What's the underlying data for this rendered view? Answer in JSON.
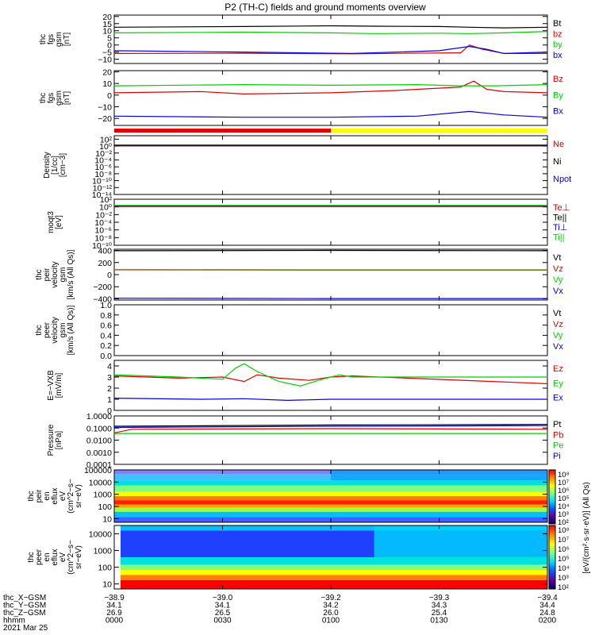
{
  "title": "P2 (TH-C) fields and ground moments overview",
  "colors": {
    "black": "#000000",
    "red": "#e00000",
    "green": "#00d000",
    "blue": "#0000e0",
    "yellow": "#ffff00",
    "axis": "#000000"
  },
  "chart_data": [
    {
      "type": "line",
      "ylabel": [
        "thc",
        "fgs",
        "gsm",
        "[nT]"
      ],
      "ylim": [
        -13,
        21
      ],
      "ticks": [
        {
          "v": 20,
          "label": "20"
        },
        {
          "v": 15,
          "label": "15"
        },
        {
          "v": 10,
          "label": "10"
        },
        {
          "v": 5,
          "label": "5"
        },
        {
          "v": 0,
          "label": "0"
        },
        {
          "v": -5,
          "label": "−5"
        },
        {
          "v": -10,
          "label": "−10"
        }
      ],
      "series": [
        {
          "name": "Bt",
          "color": "black",
          "values": [
            [
              0,
              12.5
            ],
            [
              0.3,
              13
            ],
            [
              0.5,
              13.5
            ],
            [
              0.6,
              13.2
            ],
            [
              0.75,
              13
            ],
            [
              0.82,
              12.5
            ],
            [
              0.9,
              12
            ],
            [
              1,
              12.5
            ]
          ]
        },
        {
          "name": "bz",
          "color": "red",
          "values": [
            [
              0,
              -6
            ],
            [
              0.3,
              -5.8
            ],
            [
              0.55,
              -6.2
            ],
            [
              0.8,
              -5.5
            ],
            [
              0.82,
              0
            ],
            [
              0.85,
              -3
            ],
            [
              0.9,
              -6
            ],
            [
              1,
              -6
            ]
          ]
        },
        {
          "name": "by",
          "color": "green",
          "values": [
            [
              0,
              8.5
            ],
            [
              0.3,
              9
            ],
            [
              0.5,
              8.5
            ],
            [
              0.6,
              8
            ],
            [
              0.75,
              8.3
            ],
            [
              0.82,
              8
            ],
            [
              0.9,
              8.5
            ],
            [
              1,
              9.5
            ]
          ]
        },
        {
          "name": "bx",
          "color": "blue",
          "values": [
            [
              0,
              -4
            ],
            [
              0.3,
              -5
            ],
            [
              0.55,
              -6
            ],
            [
              0.75,
              -4
            ],
            [
              0.82,
              -1
            ],
            [
              0.86,
              -3
            ],
            [
              0.9,
              -6
            ],
            [
              1,
              -5
            ]
          ]
        }
      ]
    },
    {
      "type": "line",
      "ylabel": [
        "thc",
        "fgs",
        "gsm",
        "[nT]"
      ],
      "ylim": [
        -26,
        21
      ],
      "ticks": [
        {
          "v": 20,
          "label": "20"
        },
        {
          "v": 10,
          "label": "10"
        },
        {
          "v": 0,
          "label": "0"
        },
        {
          "v": -10,
          "label": "−10"
        },
        {
          "v": -20,
          "label": "−20"
        }
      ],
      "series": [
        {
          "name": "Bz",
          "color": "red",
          "values": [
            [
              0,
              2
            ],
            [
              0.2,
              3
            ],
            [
              0.3,
              1
            ],
            [
              0.5,
              2
            ],
            [
              0.65,
              4
            ],
            [
              0.8,
              7
            ],
            [
              0.83,
              12
            ],
            [
              0.86,
              5
            ],
            [
              0.9,
              3
            ],
            [
              1,
              2
            ]
          ]
        },
        {
          "name": "By",
          "color": "green",
          "values": [
            [
              0,
              8
            ],
            [
              0.3,
              9
            ],
            [
              0.5,
              8.5
            ],
            [
              0.7,
              9
            ],
            [
              0.8,
              8
            ],
            [
              0.88,
              8
            ],
            [
              1,
              9
            ]
          ]
        },
        {
          "name": "Bx",
          "color": "blue",
          "values": [
            [
              0,
              -18
            ],
            [
              0.3,
              -19
            ],
            [
              0.5,
              -19
            ],
            [
              0.7,
              -18
            ],
            [
              0.82,
              -14
            ],
            [
              0.9,
              -17
            ],
            [
              1,
              -19
            ]
          ]
        }
      ]
    },
    {
      "type": "line",
      "scale": "log",
      "ylabel": [
        "Density",
        "[1/cc]",
        "[cm−3]"
      ],
      "ylim": [
        -14,
        3
      ],
      "ticks": [
        {
          "v": 2,
          "label": "10²"
        },
        {
          "v": 0,
          "label": "10⁰"
        },
        {
          "v": -2,
          "label": "10⁻²"
        },
        {
          "v": -4,
          "label": "10⁻⁴"
        },
        {
          "v": -6,
          "label": "10⁻⁶"
        },
        {
          "v": -8,
          "label": "10⁻⁸"
        },
        {
          "v": -10,
          "label": "10⁻¹⁰"
        },
        {
          "v": -12,
          "label": "10⁻¹²"
        },
        {
          "v": -14,
          "label": "10⁻¹⁴"
        }
      ],
      "series": [
        {
          "name": "Ne",
          "color": "red",
          "values": [
            [
              0,
              0.05
            ],
            [
              1,
              0.05
            ]
          ]
        },
        {
          "name": "Ni",
          "color": "black",
          "values": [
            [
              0,
              0.3
            ],
            [
              1,
              0.3
            ]
          ]
        },
        {
          "name": "Npot",
          "color": "blue",
          "values": [
            [
              0,
              0.1
            ],
            [
              1,
              0.1
            ]
          ]
        }
      ]
    },
    {
      "type": "line",
      "scale": "log",
      "ylabel": [
        "moqt3",
        "[eV]"
      ],
      "ylim": [
        -10,
        2
      ],
      "ticks": [
        {
          "v": 2,
          "label": "10²"
        },
        {
          "v": 0,
          "label": "10⁰"
        },
        {
          "v": -2,
          "label": "10⁻²"
        },
        {
          "v": -4,
          "label": "10⁻⁴"
        },
        {
          "v": -6,
          "label": "10⁻⁶"
        },
        {
          "v": -8,
          "label": "10⁻⁸"
        },
        {
          "v": -10,
          "label": "10⁻¹⁰"
        }
      ],
      "series": [
        {
          "name": "Te⊥",
          "color": "red",
          "values": [
            [
              0,
              0.1
            ],
            [
              1,
              0.1
            ]
          ]
        },
        {
          "name": "Te||",
          "color": "black",
          "values": [
            [
              0,
              0.3
            ],
            [
              1,
              0.3
            ]
          ]
        },
        {
          "name": "Ti⊥",
          "color": "blue",
          "values": [
            [
              0,
              0.2
            ],
            [
              1,
              0.2
            ]
          ]
        },
        {
          "name": "Ti||",
          "color": "green",
          "values": [
            [
              0,
              0.4
            ],
            [
              1,
              0.4
            ]
          ]
        }
      ]
    },
    {
      "type": "line",
      "ylabel": [
        "thc",
        "peir",
        "velocity",
        "gsm",
        "[km/s (All Qs)]"
      ],
      "ylim": [
        -420,
        420
      ],
      "ticks": [
        {
          "v": 400,
          "label": "400"
        },
        {
          "v": 200,
          "label": "200"
        },
        {
          "v": 0,
          "label": "0"
        },
        {
          "v": -200,
          "label": "−200"
        },
        {
          "v": -400,
          "label": "−400"
        }
      ],
      "series": [
        {
          "name": "Vt",
          "color": "black",
          "values": [
            [
              0,
              395
            ],
            [
              0.5,
              400
            ],
            [
              1,
              395
            ]
          ]
        },
        {
          "name": "Vz",
          "color": "red",
          "values": [
            [
              0,
              80
            ],
            [
              0.5,
              75
            ],
            [
              1,
              75
            ]
          ]
        },
        {
          "name": "Vy",
          "color": "green",
          "values": [
            [
              0,
              85
            ],
            [
              0.5,
              80
            ],
            [
              1,
              80
            ]
          ]
        },
        {
          "name": "Vx",
          "color": "blue",
          "values": [
            [
              0,
              -390
            ],
            [
              0.5,
              -395
            ],
            [
              1,
              -395
            ]
          ]
        }
      ]
    },
    {
      "type": "line",
      "ylabel": [
        "thc",
        "peer",
        "velocity",
        "gsm",
        "[km/s (All Qs)]"
      ],
      "ylim": [
        0,
        1
      ],
      "ticks": [
        {
          "v": 1,
          "label": "1.0"
        },
        {
          "v": 0.8,
          "label": "0.8"
        },
        {
          "v": 0.6,
          "label": "0.6"
        },
        {
          "v": 0.4,
          "label": "0.4"
        },
        {
          "v": 0.2,
          "label": "0.2"
        },
        {
          "v": 0,
          "label": "0.0"
        }
      ],
      "series": [
        {
          "name": "Vt",
          "color": "black",
          "values": []
        },
        {
          "name": "Vz",
          "color": "red",
          "values": []
        },
        {
          "name": "Vy",
          "color": "green",
          "values": []
        },
        {
          "name": "Vx",
          "color": "blue",
          "values": []
        }
      ]
    },
    {
      "type": "line",
      "ylabel": [
        "E=−VXB",
        "[mV/m]"
      ],
      "ylim": [
        0,
        4.5
      ],
      "ticks": [
        {
          "v": 4,
          "label": "4"
        },
        {
          "v": 3,
          "label": "3"
        },
        {
          "v": 2,
          "label": "2"
        },
        {
          "v": 1,
          "label": "1"
        },
        {
          "v": 0,
          "label": "0"
        }
      ],
      "series": [
        {
          "name": "Ez",
          "color": "red",
          "values": [
            [
              0,
              3.1
            ],
            [
              0.15,
              2.9
            ],
            [
              0.25,
              3.0
            ],
            [
              0.3,
              2.6
            ],
            [
              0.33,
              3.2
            ],
            [
              0.38,
              2.9
            ],
            [
              0.45,
              2.7
            ],
            [
              0.5,
              3.0
            ],
            [
              0.55,
              3.1
            ],
            [
              1,
              2.4
            ]
          ]
        },
        {
          "name": "Ey",
          "color": "green",
          "values": [
            [
              0,
              3.2
            ],
            [
              0.15,
              3.0
            ],
            [
              0.25,
              2.8
            ],
            [
              0.28,
              3.8
            ],
            [
              0.3,
              4.2
            ],
            [
              0.33,
              3.5
            ],
            [
              0.38,
              2.6
            ],
            [
              0.43,
              2.2
            ],
            [
              0.48,
              2.8
            ],
            [
              0.52,
              3.2
            ],
            [
              0.55,
              3.0
            ],
            [
              1,
              3.0
            ]
          ]
        },
        {
          "name": "Ex",
          "color": "blue",
          "values": [
            [
              0,
              1.1
            ],
            [
              0.2,
              1.0
            ],
            [
              0.3,
              1.05
            ],
            [
              0.4,
              0.9
            ],
            [
              0.5,
              1.0
            ],
            [
              0.55,
              1.0
            ],
            [
              1,
              1.0
            ]
          ]
        }
      ]
    },
    {
      "type": "line",
      "scale": "log",
      "ylabel": [
        "Pressure",
        "[nPa]"
      ],
      "ylim": [
        -4,
        0
      ],
      "ticks": [
        {
          "v": 0,
          "label": "1.0000"
        },
        {
          "v": -1,
          "label": "0.1000"
        },
        {
          "v": -2,
          "label": "0.0100"
        },
        {
          "v": -3,
          "label": "0.0010"
        },
        {
          "v": -4,
          "label": "0.0001"
        }
      ],
      "series": [
        {
          "name": "Pt",
          "color": "black",
          "values": [
            [
              0,
              -0.85
            ],
            [
              0.5,
              -0.75
            ],
            [
              1,
              -0.7
            ]
          ]
        },
        {
          "name": "Pb",
          "color": "red",
          "values": [
            [
              0,
              -1.4
            ],
            [
              0.04,
              -1.1
            ],
            [
              0.5,
              -1.05
            ],
            [
              1,
              -1.1
            ]
          ]
        },
        {
          "name": "Pe",
          "color": "green",
          "values": [
            [
              0,
              -1.45
            ],
            [
              1,
              -1.45
            ]
          ]
        },
        {
          "name": "Pi",
          "color": "blue",
          "values": [
            [
              0,
              -0.95
            ],
            [
              0.5,
              -0.85
            ],
            [
              1,
              -0.8
            ]
          ]
        }
      ]
    },
    {
      "type": "heatmap",
      "ylabel": [
        "thc",
        "peir",
        "en",
        "eflux",
        "eV",
        "(cm^2−s−",
        "sr−eV)"
      ],
      "ylim": [
        0.7,
        5
      ],
      "ticks": [
        {
          "v": 5,
          "label": "100000"
        },
        {
          "v": 4,
          "label": "10000"
        },
        {
          "v": 3,
          "label": "1000"
        },
        {
          "v": 2,
          "label": "100"
        },
        {
          "v": 1,
          "label": "10"
        }
      ]
    },
    {
      "type": "heatmap",
      "ylabel": [
        "thc",
        "peer",
        "en",
        "eflux",
        "eV",
        "(cm^2−s−",
        "sr−eV)"
      ],
      "ylim": [
        0.7,
        4.5
      ],
      "ticks": [
        {
          "v": 4,
          "label": "10000"
        },
        {
          "v": 3,
          "label": "1000"
        },
        {
          "v": 2,
          "label": "100"
        },
        {
          "v": 1,
          "label": "10"
        }
      ]
    }
  ],
  "colorbar": {
    "label": "[eV/(cm²·s·sr·eV)] (All Qs)",
    "ticks_top": [
      "10⁸",
      "10⁷",
      "10⁶",
      "10⁵",
      "10⁴",
      "10³",
      "10²"
    ],
    "ticks_bottom": [
      "10⁸",
      "10⁷",
      "10⁶",
      "10⁵",
      "10⁴",
      "10³",
      "10²"
    ]
  },
  "xaxis": {
    "label_rows": [
      "thc_X−GSM",
      "thc_Y−GSM",
      "thc_Z−GSM",
      "hhmm",
      "2021 Mar 25"
    ],
    "ticks": [
      {
        "pos": 0,
        "rows": [
          "−38.9",
          "34.1",
          "26.9",
          "0000"
        ]
      },
      {
        "pos": 0.25,
        "rows": [
          "−39.0",
          "34.1",
          "26.5",
          "0030"
        ]
      },
      {
        "pos": 0.5,
        "rows": [
          "−39.2",
          "34.2",
          "26.0",
          "0100"
        ]
      },
      {
        "pos": 0.75,
        "rows": [
          "−39.3",
          "34.3",
          "25.4",
          "0130"
        ]
      },
      {
        "pos": 1,
        "rows": [
          "−39.4",
          "34.4",
          "24.8",
          "0200"
        ]
      }
    ]
  }
}
